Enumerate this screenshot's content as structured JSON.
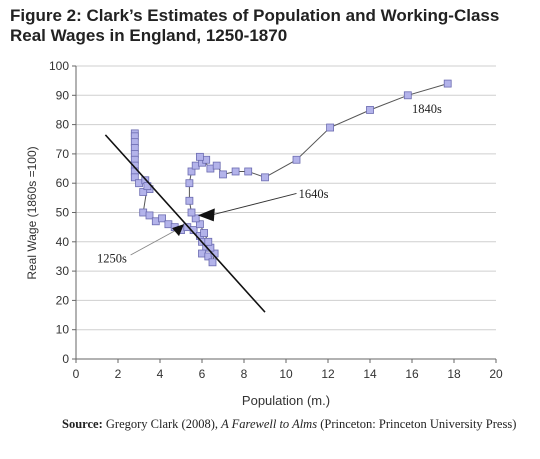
{
  "figure": {
    "title_line1": "Figure 2: Clark’s Estimates of Population and Working-Class",
    "title_line2": "Real Wages in England, 1250-1870"
  },
  "source": {
    "label": "Source:",
    "text_before": "Gregory Clark (2008),",
    "book": "A Farewell to Alms",
    "text_after": "(Princeton: Princeton University Press)"
  },
  "chart_data": {
    "type": "scatter",
    "xlabel": "Population (m.)",
    "ylabel": "Real Wage (1860s =100)",
    "xlim": [
      0,
      20
    ],
    "ylim": [
      0,
      100
    ],
    "xticks": [
      0,
      2,
      4,
      6,
      8,
      10,
      12,
      14,
      16,
      18,
      20
    ],
    "yticks": [
      0,
      10,
      20,
      30,
      40,
      50,
      60,
      70,
      80,
      90,
      100
    ],
    "grid": true,
    "colors": {
      "marker_fill": "#b3b3ea",
      "marker_stroke": "#6b6bb0",
      "line": "#555555",
      "trend": "#111111",
      "grid": "#cfcfcf"
    },
    "series": [
      {
        "values": [
          {
            "x": 2.8,
            "y": 77
          },
          {
            "x": 2.8,
            "y": 76
          },
          {
            "x": 2.8,
            "y": 74
          },
          {
            "x": 2.8,
            "y": 72
          },
          {
            "x": 2.8,
            "y": 70
          },
          {
            "x": 2.8,
            "y": 68
          },
          {
            "x": 2.8,
            "y": 66
          },
          {
            "x": 2.8,
            "y": 64
          },
          {
            "x": 2.8,
            "y": 62
          },
          {
            "x": 3.0,
            "y": 60
          },
          {
            "x": 3.3,
            "y": 61
          },
          {
            "x": 3.5,
            "y": 58
          },
          {
            "x": 3.2,
            "y": 57
          },
          {
            "x": 3.4,
            "y": 59
          },
          {
            "x": 3.2,
            "y": 50
          },
          {
            "x": 3.5,
            "y": 49
          },
          {
            "x": 3.8,
            "y": 47
          },
          {
            "x": 4.1,
            "y": 48
          },
          {
            "x": 4.4,
            "y": 46
          },
          {
            "x": 4.7,
            "y": 45
          },
          {
            "x": 5.0,
            "y": 44
          },
          {
            "x": 5.3,
            "y": 45
          },
          {
            "x": 5.6,
            "y": 44
          },
          {
            "x": 5.9,
            "y": 42
          },
          {
            "x": 6.0,
            "y": 40
          },
          {
            "x": 6.2,
            "y": 38
          },
          {
            "x": 6.0,
            "y": 36
          },
          {
            "x": 6.3,
            "y": 35
          },
          {
            "x": 6.5,
            "y": 33
          },
          {
            "x": 6.6,
            "y": 36
          },
          {
            "x": 6.4,
            "y": 38
          },
          {
            "x": 6.3,
            "y": 40
          },
          {
            "x": 6.1,
            "y": 43
          },
          {
            "x": 5.9,
            "y": 46
          },
          {
            "x": 5.7,
            "y": 48
          },
          {
            "x": 5.5,
            "y": 50
          },
          {
            "x": 5.4,
            "y": 54
          },
          {
            "x": 5.4,
            "y": 60
          },
          {
            "x": 5.5,
            "y": 64
          },
          {
            "x": 5.7,
            "y": 66
          },
          {
            "x": 6.0,
            "y": 67
          },
          {
            "x": 6.2,
            "y": 68
          },
          {
            "x": 5.9,
            "y": 69
          },
          {
            "x": 6.4,
            "y": 65
          },
          {
            "x": 6.7,
            "y": 66
          },
          {
            "x": 7.0,
            "y": 63
          },
          {
            "x": 7.6,
            "y": 64
          },
          {
            "x": 8.2,
            "y": 64
          },
          {
            "x": 9.0,
            "y": 62
          },
          {
            "x": 10.5,
            "y": 68
          },
          {
            "x": 12.1,
            "y": 79
          },
          {
            "x": 14.0,
            "y": 85
          },
          {
            "x": 15.8,
            "y": 90
          },
          {
            "x": 17.7,
            "y": 94
          }
        ]
      }
    ],
    "trendline": {
      "x": [
        1.4,
        9.0
      ],
      "y": [
        76.5,
        16.0
      ]
    },
    "annotations": [
      {
        "text": "1840s",
        "x": 16.0,
        "y": 84
      },
      {
        "text": "1640s",
        "x": 10.6,
        "y": 55
      },
      {
        "text": "1250s",
        "x": 1.0,
        "y": 33
      }
    ]
  }
}
